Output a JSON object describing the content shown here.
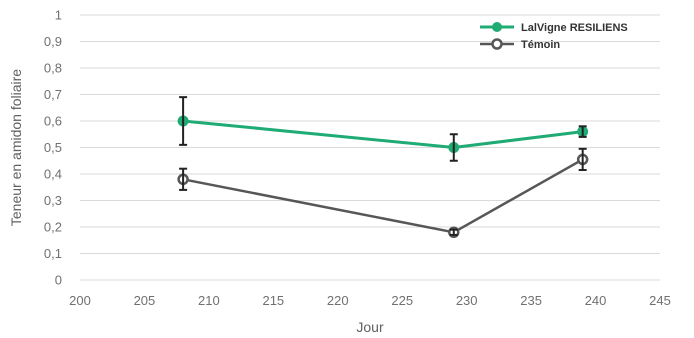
{
  "chart_data": {
    "type": "line",
    "title": "",
    "xlabel": "Jour",
    "ylabel": "Teneur en amidon foliaire",
    "xlim": [
      200,
      245
    ],
    "ylim": [
      0,
      1
    ],
    "x_ticks": [
      "200",
      "205",
      "210",
      "215",
      "220",
      "225",
      "230",
      "235",
      "240",
      "245"
    ],
    "y_ticks": [
      "0",
      "0,1",
      "0,2",
      "0,3",
      "0,4",
      "0,5",
      "0,6",
      "0,7",
      "0,8",
      "0,9",
      "1"
    ],
    "grid": "horizontal",
    "legend_position": "top-right",
    "series": [
      {
        "name": "LalVigne RESILIENS",
        "color": "#1fab74",
        "marker": "filled-circle",
        "x": [
          208,
          229,
          239
        ],
        "y": [
          0.6,
          0.5,
          0.56
        ],
        "error": [
          0.09,
          0.05,
          0.02
        ]
      },
      {
        "name": "Témoin",
        "color": "#575757",
        "marker": "open-circle",
        "x": [
          208,
          229,
          239
        ],
        "y": [
          0.38,
          0.18,
          0.455
        ],
        "error": [
          0.04,
          0.01,
          0.04
        ]
      }
    ]
  }
}
